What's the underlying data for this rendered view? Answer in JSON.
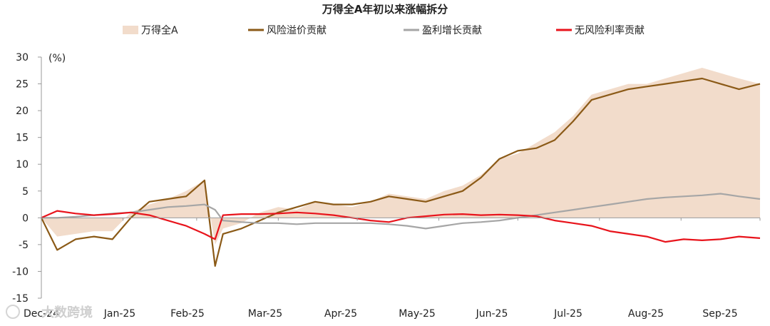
{
  "chart_data": {
    "type": "area",
    "title": "万得全A年初以来涨幅拆分",
    "y_unit_label": "(%)",
    "ylim": [
      -15,
      30
    ],
    "y_ticks": [
      "30",
      "25",
      "20",
      "15",
      "10",
      "5",
      "0",
      "-5",
      "-10",
      "-15"
    ],
    "x_ticks": [
      "Dec-24",
      "Jan-25",
      "Feb-25",
      "Mar-25",
      "Apr-25",
      "May-25",
      "Jun-25",
      "Jul-25",
      "Aug-25",
      "Sep-25"
    ],
    "x": [
      "2024-12-31",
      "2025-01-06",
      "2025-01-13",
      "2025-01-20",
      "2025-01-27",
      "2025-02-03",
      "2025-02-10",
      "2025-02-17",
      "2025-02-24",
      "2025-03-03",
      "2025-03-07",
      "2025-03-10",
      "2025-03-17",
      "2025-03-24",
      "2025-03-31",
      "2025-04-07",
      "2025-04-14",
      "2025-04-21",
      "2025-04-28",
      "2025-05-05",
      "2025-05-12",
      "2025-05-19",
      "2025-05-26",
      "2025-06-02",
      "2025-06-09",
      "2025-06-16",
      "2025-06-23",
      "2025-06-30",
      "2025-07-07",
      "2025-07-14",
      "2025-07-21",
      "2025-07-28",
      "2025-08-04",
      "2025-08-11",
      "2025-08-18",
      "2025-08-25",
      "2025-09-01",
      "2025-09-08",
      "2025-09-15",
      "2025-09-22",
      "2025-09-30"
    ],
    "series": [
      {
        "name": "万得全A",
        "style": "area",
        "color": "#f2dccb",
        "values": [
          0,
          -3.5,
          -3,
          -2.5,
          -2.5,
          1,
          2.5,
          3.5,
          5,
          7,
          -5,
          -2,
          -1,
          1,
          2,
          1.5,
          3,
          2.5,
          2,
          3,
          4.5,
          4,
          3.5,
          5,
          6,
          8,
          11,
          12,
          14,
          16,
          19,
          23,
          24,
          25,
          25,
          26,
          27,
          28,
          27,
          26,
          25
        ]
      },
      {
        "name": "风险溢价贡献",
        "style": "line",
        "color": "#8b5a17",
        "values": [
          0,
          -6,
          -4,
          -3.5,
          -4,
          0,
          3,
          3.5,
          4,
          7,
          -9,
          -3,
          -2,
          -0.5,
          1,
          2,
          3,
          2.5,
          2.5,
          3,
          4,
          3.5,
          3,
          4,
          5,
          7.5,
          11,
          12.5,
          13,
          14.5,
          18,
          22,
          23,
          24,
          24.5,
          25,
          25.5,
          26,
          25,
          24,
          25
        ]
      },
      {
        "name": "盈利增长贡献",
        "style": "line",
        "color": "#a6a6a6",
        "values": [
          0,
          0,
          0.2,
          0.5,
          0.8,
          1,
          1.5,
          2,
          2.2,
          2.5,
          1.5,
          -0.5,
          -0.8,
          -1,
          -1,
          -1.2,
          -1,
          -1,
          -1,
          -1,
          -1.2,
          -1.5,
          -2,
          -1.5,
          -1,
          -0.8,
          -0.5,
          0,
          0.5,
          1,
          1.5,
          2,
          2.5,
          3,
          3.5,
          3.8,
          4,
          4.2,
          4.5,
          4,
          3.5
        ]
      },
      {
        "name": "无风险利率贡献",
        "style": "line",
        "color": "#e8141c",
        "values": [
          0,
          1.3,
          0.8,
          0.5,
          0.7,
          1,
          0.5,
          -0.5,
          -1.5,
          -3,
          -4,
          0.5,
          0.7,
          0.7,
          0.8,
          1,
          0.8,
          0.5,
          0,
          -0.5,
          -0.8,
          0,
          0.3,
          0.6,
          0.7,
          0.5,
          0.6,
          0.5,
          0.3,
          -0.5,
          -1,
          -1.5,
          -2.5,
          -3,
          -3.5,
          -4.5,
          -4,
          -4.2,
          -4,
          -3.5,
          -3.8
        ]
      }
    ],
    "legend_position": "top",
    "grid": false
  },
  "watermark": "大数跨境"
}
